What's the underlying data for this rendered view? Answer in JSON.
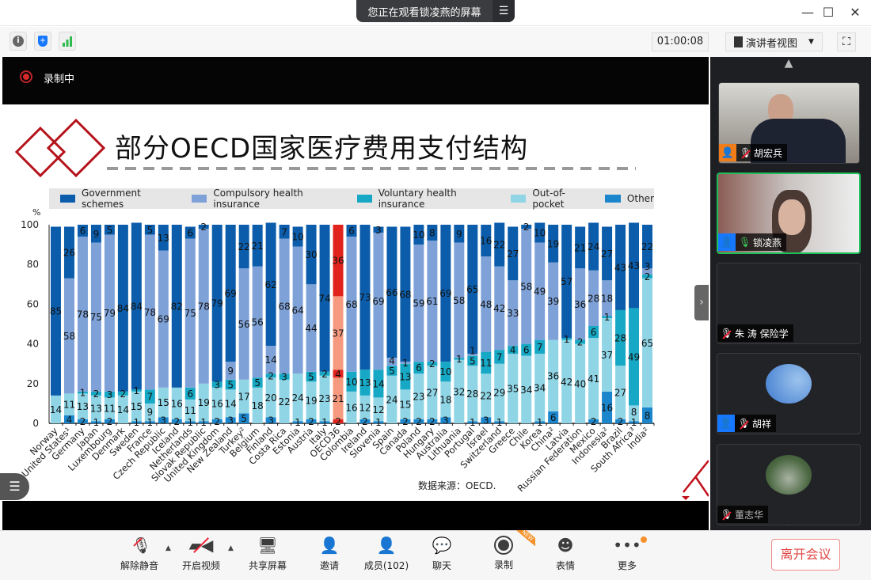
{
  "window": {
    "share_banner": "您正在观看锁凌燕的屏幕",
    "minimize": "—",
    "maximize": "☐",
    "close": "✕"
  },
  "toolbar": {
    "timer": "01:00:08",
    "view_mode": "演讲者视图",
    "icons": [
      "info-icon",
      "security-shield-icon",
      "signal-icon"
    ]
  },
  "recording": {
    "label": "录制中"
  },
  "slide": {
    "title": "部分OECD国家医疗费用支付结构",
    "source": "数据来源：OECD."
  },
  "chart_data": {
    "type": "bar",
    "stacked": true,
    "ylabel": "%",
    "ylim": [
      0,
      100
    ],
    "yticks": [
      0,
      20,
      40,
      60,
      80,
      100
    ],
    "legend_position": "top",
    "categories": [
      "Norway",
      "United States¹",
      "Germany",
      "Japan",
      "Luxembourg",
      "Denmark",
      "Sweden",
      "France",
      "Czech Republic",
      "Iceland",
      "Netherlands",
      "Slovak Republic",
      "United Kingdom",
      "New Zealand",
      "Turkey²",
      "Belgium",
      "Finland",
      "Costa Rica",
      "Estonia",
      "Austria",
      "Italy",
      "OECD36",
      "Colombia",
      "Ireland",
      "Slovenia",
      "Spain",
      "Canada",
      "Poland",
      "Hungary",
      "Australia",
      "Lithuania",
      "Portugal",
      "Israel",
      "Switzerland",
      "Greece",
      "Chile",
      "Korea",
      "China²",
      "Latvia",
      "Russian Federation",
      "Mexico",
      "Indonesia²",
      "Brazil",
      "South Africa³",
      "India²"
    ],
    "highlight": "OECD36",
    "highlight_colors": [
      "#e0231d",
      "#f59a7e",
      "#e0231d",
      "#f59a7e",
      "#e0231d"
    ],
    "series": [
      {
        "name": "Government schemes",
        "color": "#0b5dab",
        "values": [
          85,
          26,
          6,
          9,
          5,
          84,
          84,
          5,
          13,
          82,
          6,
          2,
          79,
          69,
          22,
          21,
          62,
          7,
          10,
          30,
          74,
          36,
          6,
          73,
          3,
          66,
          68,
          10,
          8,
          69,
          9,
          65,
          16,
          22,
          27,
          2,
          10,
          19,
          57,
          21,
          24,
          27,
          43,
          43,
          22
        ]
      },
      {
        "name": "Compulsory health insurance",
        "color": "#7ea2d8",
        "values": [
          0,
          58,
          78,
          75,
          79,
          0,
          0,
          78,
          69,
          0,
          75,
          78,
          0,
          9,
          56,
          56,
          14,
          68,
          64,
          44,
          0,
          37,
          68,
          0,
          69,
          4,
          1,
          59,
          61,
          0,
          58,
          1,
          48,
          42,
          33,
          58,
          49,
          39,
          0,
          36,
          28,
          18,
          0,
          0,
          3
        ]
      },
      {
        "name": "Voluntary health insurance",
        "color": "#16a8c4",
        "values": [
          0,
          0,
          1,
          2,
          3,
          2,
          1,
          7,
          0,
          0,
          6,
          0,
          3,
          5,
          0,
          5,
          2,
          3,
          0,
          5,
          2,
          4,
          10,
          13,
          14,
          5,
          13,
          6,
          2,
          10,
          1,
          5,
          11,
          7,
          4,
          6,
          7,
          0,
          1,
          2,
          6,
          1,
          28,
          49,
          2
        ]
      },
      {
        "name": "Out-of-pocket",
        "color": "#8fd5e6",
        "values": [
          14,
          11,
          13,
          13,
          11,
          14,
          15,
          9,
          15,
          16,
          11,
          19,
          16,
          14,
          17,
          18,
          20,
          22,
          24,
          19,
          23,
          21,
          16,
          12,
          12,
          24,
          15,
          23,
          27,
          18,
          32,
          28,
          22,
          29,
          35,
          34,
          34,
          36,
          42,
          40,
          41,
          37,
          27,
          8,
          65
        ]
      },
      {
        "name": "Other",
        "color": "#1b86cc",
        "values": [
          0,
          4,
          2,
          1,
          2,
          0,
          1,
          1,
          3,
          2,
          1,
          1,
          2,
          3,
          5,
          0,
          3,
          0,
          1,
          2,
          1,
          2,
          0,
          2,
          1,
          0,
          2,
          2,
          2,
          3,
          0,
          1,
          3,
          1,
          0,
          0,
          1,
          6,
          0,
          0,
          2,
          16,
          2,
          1,
          8
        ]
      }
    ]
  },
  "participants": [
    {
      "name": "胡宏兵",
      "muted": true,
      "role_color": "#f07d1a",
      "video": true
    },
    {
      "name": "锁凌燕",
      "muted": false,
      "role_color": "#1677ff",
      "video": true,
      "speaking": true
    },
    {
      "name": "朱 涛 保险学",
      "muted": true,
      "video": false
    },
    {
      "name": "胡祥",
      "muted": true,
      "role_color": "#1677ff",
      "video": false
    },
    {
      "name": "董志华",
      "muted": true,
      "video": false
    }
  ],
  "bottombar": {
    "unmute": "解除静音",
    "video": "开启视频",
    "share": "共享屏幕",
    "invite": "邀请",
    "members": "成员(102)",
    "chat": "聊天",
    "record": "录制",
    "record_badge": "NEW",
    "emoji": "表情",
    "more": "更多",
    "leave": "离开会议"
  }
}
